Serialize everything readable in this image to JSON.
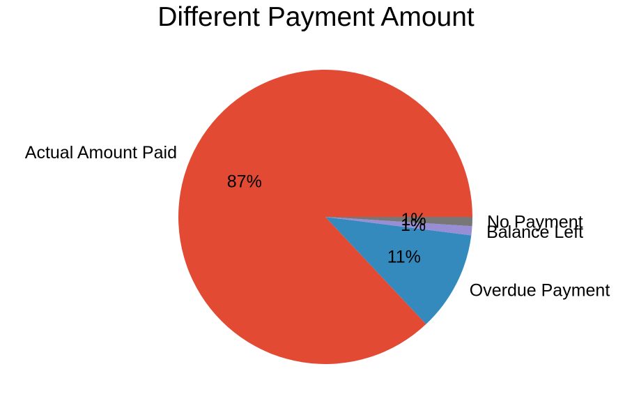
{
  "chart_data": {
    "type": "pie",
    "title": "Different Payment Amount",
    "categories": [
      "Actual Amount Paid",
      "Overdue Payment",
      "Balance Left",
      "No Payment"
    ],
    "values": [
      87,
      11,
      1,
      1
    ],
    "value_labels": [
      "87%",
      "11%",
      "1%",
      "1%"
    ],
    "colors": [
      "#E24A33",
      "#348ABD",
      "#988ED5",
      "#777777"
    ],
    "start_angle_deg": 0,
    "direction": "counterclockwise",
    "legend": "none"
  }
}
